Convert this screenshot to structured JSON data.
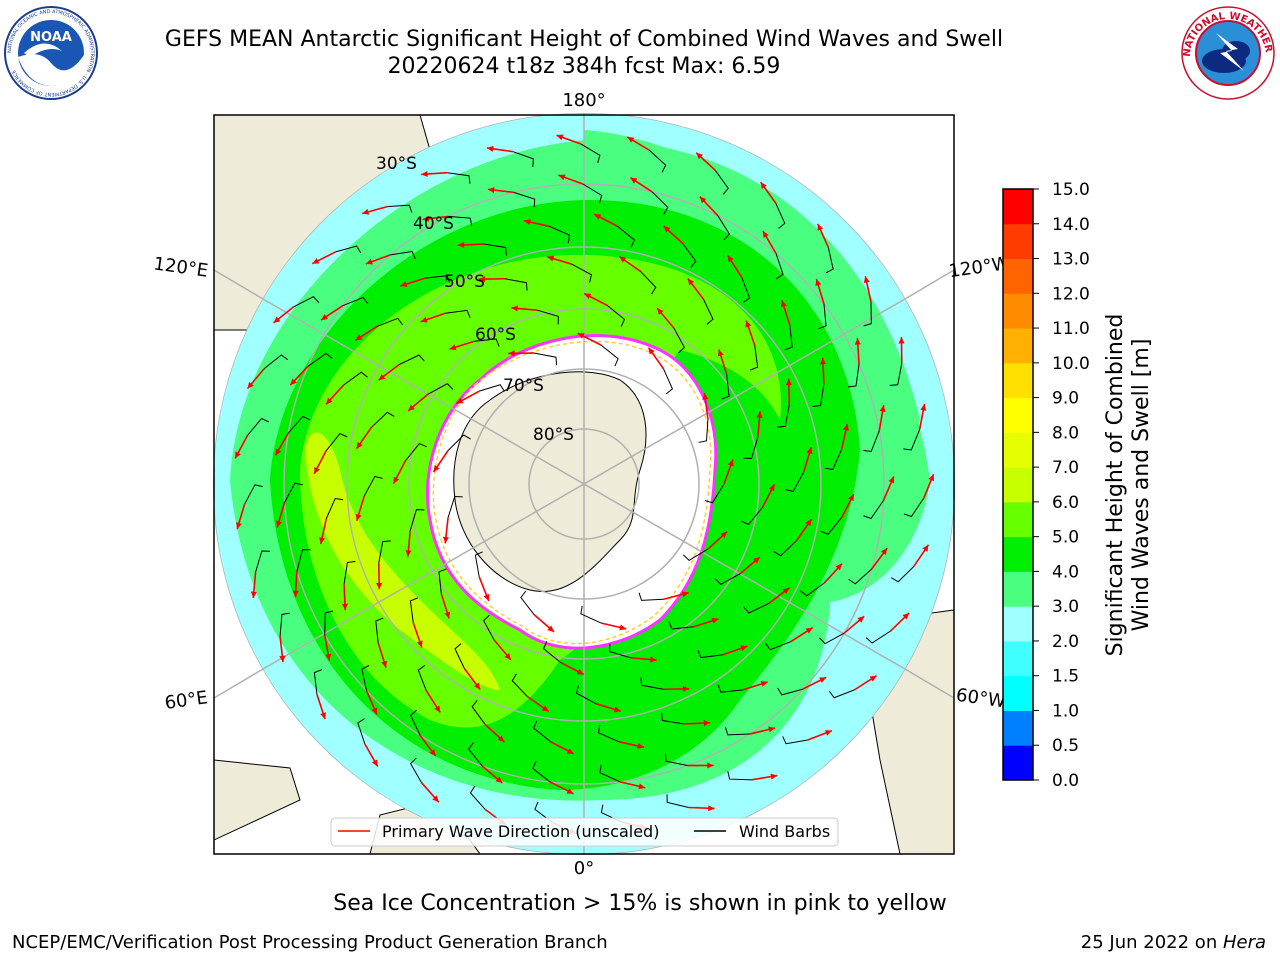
{
  "title_line1": "GEFS MEAN Antarctic Significant Height of Combined Wind Waves and Swell",
  "title_line2": "20220624 t18z 384h fcst   Max: 6.59",
  "sea_ice_note": "Sea Ice Concentration > 15% is shown in pink to yellow",
  "footer_left": "NCEP/EMC/Verification Post Processing Product Generation Branch",
  "footer_right_date": "25 Jun 2022 on ",
  "footer_right_host": "Hera",
  "logos": {
    "left_text": "NOAA",
    "left_ring_text": "NATIONAL OCEANIC AND ATMOSPHERIC ADMINISTRATION · U.S. DEPARTMENT OF COMMERCE",
    "right_ring_text": "NATIONAL WEATHER SERVICE"
  },
  "map": {
    "projection": "south-polar-stereographic",
    "longitude_labels": [
      "180°",
      "120°E",
      "120°W",
      "60°E",
      "60°W",
      "0°"
    ],
    "latitude_labels": [
      "30°S",
      "40°S",
      "50°S",
      "60°S",
      "70°S",
      "80°S"
    ],
    "legend": {
      "wave_label": "Primary Wave Direction (unscaled)",
      "barb_label": "Wind Barbs",
      "wave_color": "#ff0000",
      "barb_color": "#000000"
    },
    "colors": {
      "land": "#efebd9",
      "ice": "#ffffff",
      "ice_edge": [
        "#ff33ff",
        "#cc00cc",
        "#ff9966",
        "#ffcc33"
      ],
      "grid": "#b0b0b0"
    }
  },
  "colorbar": {
    "label": "Significant Height of Combined Wind Waves and Swell [m]",
    "label_line1": "Significant Height of Combined",
    "label_line2": "Wind Waves and Swell [m]",
    "levels": [
      "0.0",
      "0.5",
      "1.0",
      "1.5",
      "2.0",
      "3.0",
      "4.0",
      "5.0",
      "6.0",
      "7.0",
      "8.0",
      "9.0",
      "10.0",
      "11.0",
      "12.0",
      "13.0",
      "14.0",
      "15.0"
    ],
    "colors": [
      "#0000ff",
      "#0080ff",
      "#00ffff",
      "#40ffff",
      "#a0ffff",
      "#4aff80",
      "#00ee00",
      "#66ff00",
      "#c8ff00",
      "#e6ff00",
      "#ffff00",
      "#ffe000",
      "#ffb000",
      "#ff8c00",
      "#ff6400",
      "#ff3c00",
      "#ff0000"
    ]
  }
}
